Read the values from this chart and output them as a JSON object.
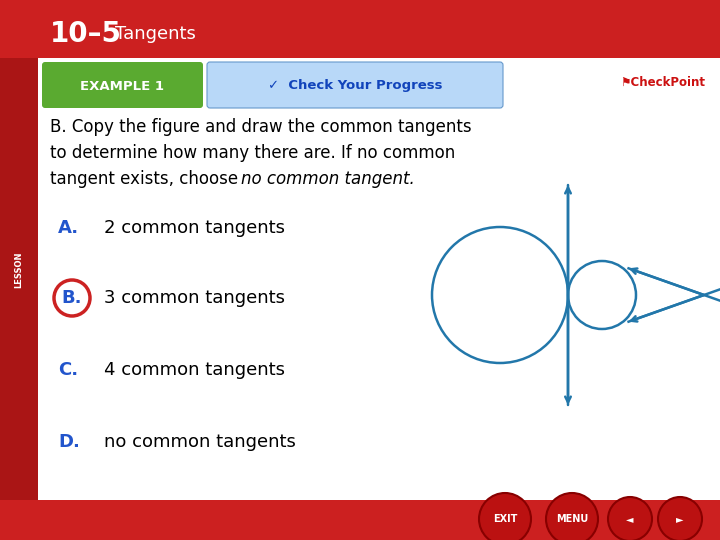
{
  "lesson_bar_color": "#cc2020",
  "left_stripe_color": "#aa1515",
  "bg_color": "#ffffff",
  "title_num": "10–5",
  "title_word": "Tangents",
  "example_bg": "#5aaa30",
  "check_bg": "#b8d8f8",
  "check_border": "#6699cc",
  "circle_color": "#2277aa",
  "answer_circle_color": "#cc2222",
  "letter_color": "#2255cc",
  "options": [
    {
      "letter": "A.",
      "text": "2 common tangents",
      "circled": false
    },
    {
      "letter": "B.",
      "text": "3 common tangents",
      "circled": true
    },
    {
      "letter": "C.",
      "text": "4 common tangents",
      "circled": false
    },
    {
      "letter": "D.",
      "text": "no common tangents",
      "circled": false
    }
  ]
}
